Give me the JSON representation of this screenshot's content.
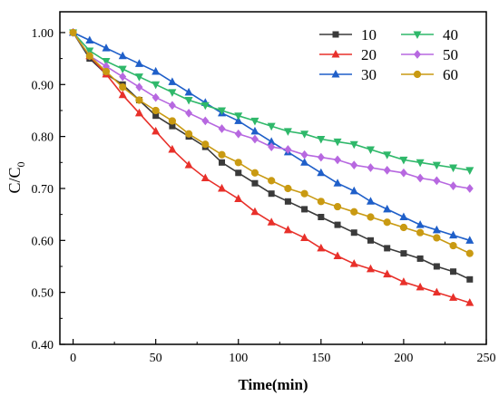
{
  "chart_data": {
    "type": "line",
    "title": "",
    "xlabel": "Time(min)",
    "ylabel_main": "C/C",
    "ylabel_sub": "0",
    "xlim": [
      -8,
      250
    ],
    "ylim": [
      0.4,
      1.04
    ],
    "xticks": [
      0,
      50,
      100,
      150,
      200,
      250
    ],
    "yticks": [
      0.4,
      0.5,
      0.6,
      0.7,
      0.8,
      0.9,
      1.0
    ],
    "xtick_labels": [
      "0",
      "50",
      "100",
      "150",
      "200",
      "250"
    ],
    "ytick_labels": [
      "0.40",
      "0.50",
      "0.60",
      "0.70",
      "0.80",
      "0.90",
      "1.00"
    ],
    "legend_position": "top-right",
    "series": [
      {
        "name": "10",
        "color": "#3a3a3a",
        "marker": "square",
        "x": [
          0,
          10,
          20,
          30,
          40,
          50,
          60,
          70,
          80,
          90,
          100,
          110,
          120,
          130,
          140,
          150,
          160,
          170,
          180,
          190,
          200,
          210,
          220,
          230,
          240
        ],
        "y": [
          1.0,
          0.95,
          0.92,
          0.9,
          0.87,
          0.84,
          0.82,
          0.8,
          0.78,
          0.75,
          0.73,
          0.71,
          0.69,
          0.675,
          0.66,
          0.645,
          0.63,
          0.615,
          0.6,
          0.585,
          0.575,
          0.565,
          0.55,
          0.54,
          0.525
        ]
      },
      {
        "name": "20",
        "color": "#e8302a",
        "marker": "triangle-up",
        "x": [
          0,
          10,
          20,
          30,
          40,
          50,
          60,
          70,
          80,
          90,
          100,
          110,
          120,
          130,
          140,
          150,
          160,
          170,
          180,
          190,
          200,
          210,
          220,
          230,
          240
        ],
        "y": [
          1.0,
          0.955,
          0.92,
          0.88,
          0.845,
          0.81,
          0.775,
          0.745,
          0.72,
          0.7,
          0.68,
          0.655,
          0.635,
          0.62,
          0.605,
          0.585,
          0.57,
          0.555,
          0.545,
          0.535,
          0.52,
          0.51,
          0.5,
          0.49,
          0.48
        ]
      },
      {
        "name": "30",
        "color": "#1f5fc9",
        "marker": "triangle-up",
        "x": [
          0,
          10,
          20,
          30,
          40,
          50,
          60,
          70,
          80,
          90,
          100,
          110,
          120,
          130,
          140,
          150,
          160,
          170,
          180,
          190,
          200,
          210,
          220,
          230,
          240
        ],
        "y": [
          1.0,
          0.985,
          0.97,
          0.955,
          0.94,
          0.925,
          0.905,
          0.885,
          0.865,
          0.845,
          0.83,
          0.81,
          0.79,
          0.77,
          0.75,
          0.73,
          0.71,
          0.695,
          0.675,
          0.66,
          0.645,
          0.63,
          0.62,
          0.61,
          0.6
        ]
      },
      {
        "name": "40",
        "color": "#2fb86a",
        "marker": "triangle-down",
        "x": [
          0,
          10,
          20,
          30,
          40,
          50,
          60,
          70,
          80,
          90,
          100,
          110,
          120,
          130,
          140,
          150,
          160,
          170,
          180,
          190,
          200,
          210,
          220,
          230,
          240
        ],
        "y": [
          1.0,
          0.965,
          0.945,
          0.93,
          0.915,
          0.9,
          0.885,
          0.87,
          0.86,
          0.85,
          0.84,
          0.83,
          0.82,
          0.81,
          0.805,
          0.795,
          0.79,
          0.785,
          0.775,
          0.765,
          0.755,
          0.75,
          0.745,
          0.74,
          0.735
        ]
      },
      {
        "name": "50",
        "color": "#b768e0",
        "marker": "diamond",
        "x": [
          0,
          10,
          20,
          30,
          40,
          50,
          60,
          70,
          80,
          90,
          100,
          110,
          120,
          130,
          140,
          150,
          160,
          170,
          180,
          190,
          200,
          210,
          220,
          230,
          240
        ],
        "y": [
          1.0,
          0.955,
          0.935,
          0.915,
          0.895,
          0.875,
          0.86,
          0.845,
          0.83,
          0.815,
          0.805,
          0.795,
          0.78,
          0.775,
          0.765,
          0.76,
          0.755,
          0.745,
          0.74,
          0.735,
          0.73,
          0.72,
          0.715,
          0.705,
          0.7
        ]
      },
      {
        "name": "60",
        "color": "#c99a12",
        "marker": "circle",
        "x": [
          0,
          10,
          20,
          30,
          40,
          50,
          60,
          70,
          80,
          90,
          100,
          110,
          120,
          130,
          140,
          150,
          160,
          170,
          180,
          190,
          200,
          210,
          220,
          230,
          240
        ],
        "y": [
          1.0,
          0.955,
          0.925,
          0.895,
          0.87,
          0.85,
          0.83,
          0.805,
          0.785,
          0.765,
          0.75,
          0.73,
          0.715,
          0.7,
          0.69,
          0.675,
          0.665,
          0.655,
          0.645,
          0.635,
          0.625,
          0.615,
          0.605,
          0.59,
          0.575
        ]
      }
    ]
  }
}
